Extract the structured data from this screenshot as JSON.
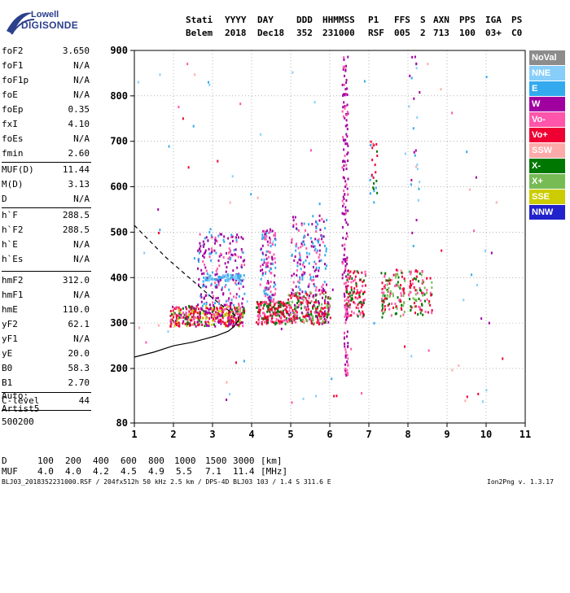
{
  "logo": {
    "line1": "Lowell",
    "line2": "DIGISONDE"
  },
  "header": {
    "row1": [
      "Stati",
      "YYYY",
      "DAY",
      "DDD",
      "HHMMSS",
      "P1",
      "FFS",
      "S",
      "AXN",
      "PPS",
      "IGA",
      "PS"
    ],
    "row2": [
      "Belem",
      "2018",
      "Dec18",
      "352",
      "231000",
      "RSF",
      "005",
      "2",
      "713",
      "100",
      "03+",
      "C0"
    ]
  },
  "parameters": [
    {
      "label": "foF2",
      "value": "3.650"
    },
    {
      "label": "foF1",
      "value": "N/A"
    },
    {
      "label": "foF1p",
      "value": "N/A"
    },
    {
      "label": "foE",
      "value": "N/A"
    },
    {
      "label": "foEp",
      "value": "0.35"
    },
    {
      "label": "fxI",
      "value": "4.10"
    },
    {
      "label": "foEs",
      "value": "N/A"
    },
    {
      "label": "fmin",
      "value": "2.60"
    },
    {
      "label": "MUF(D)",
      "value": "11.44"
    },
    {
      "label": "M(D)",
      "value": "3.13"
    },
    {
      "label": "D",
      "value": "N/A"
    },
    {
      "label": "h`F",
      "value": "288.5"
    },
    {
      "label": "h`F2",
      "value": "288.5"
    },
    {
      "label": "h`E",
      "value": "N/A"
    },
    {
      "label": "h`Es",
      "value": "N/A"
    },
    {
      "label": "hmF2",
      "value": "312.0"
    },
    {
      "label": "hmF1",
      "value": "N/A"
    },
    {
      "label": "hmE",
      "value": "110.0"
    },
    {
      "label": "yF2",
      "value": "62.1"
    },
    {
      "label": "yF1",
      "value": "N/A"
    },
    {
      "label": "yE",
      "value": "20.0"
    },
    {
      "label": "B0",
      "value": "58.3"
    },
    {
      "label": "B1",
      "value": "2.70"
    },
    {
      "label": "C-level",
      "value": "44"
    }
  ],
  "auto": [
    "Auto:",
    "Artist5",
    "500200"
  ],
  "legend": [
    {
      "label": "NoVal",
      "color": "#8c8c8c"
    },
    {
      "label": "NNE",
      "color": "#87cefa"
    },
    {
      "label": "E",
      "color": "#33aaee"
    },
    {
      "label": "W",
      "color": "#a000a0"
    },
    {
      "label": "Vo-",
      "color": "#ff55aa"
    },
    {
      "label": "Vo+",
      "color": "#ee0033"
    },
    {
      "label": "SSW",
      "color": "#ffaaaa"
    },
    {
      "label": "X-",
      "color": "#007700"
    },
    {
      "label": "X+",
      "color": "#77bb55"
    },
    {
      "label": "SSE",
      "color": "#cccc00"
    },
    {
      "label": "NNW",
      "color": "#2222cc"
    }
  ],
  "muf_table": {
    "d_label": "D",
    "muf_label": "MUF",
    "d_values": [
      "100",
      "200",
      "400",
      "600",
      "800",
      "1000",
      "1500",
      "3000",
      "[km]"
    ],
    "muf_values": [
      "4.0",
      "4.0",
      "4.2",
      "4.5",
      "4.9",
      "5.5",
      "7.1",
      "11.4",
      "[MHz]"
    ]
  },
  "footer": {
    "left": "BLJ03_2018352231000.RSF / 204fx512h 50 kHz 2.5 km / DPS-4D BLJ03 103 / 1.4 S 311.6 E",
    "right": "Ion2Png v. 1.3.17"
  },
  "chart_data": {
    "type": "scatter",
    "xlabel": "",
    "ylabel": "",
    "xlim": [
      1,
      11
    ],
    "ylim": [
      80,
      900
    ],
    "x_ticks": [
      1,
      2,
      3,
      4,
      5,
      6,
      7,
      8,
      9,
      10,
      11
    ],
    "y_ticks": [
      80,
      200,
      300,
      400,
      500,
      600,
      700,
      800,
      900
    ],
    "grid": "dotted",
    "traces": [
      {
        "name": "",
        "style": "solid",
        "x": [
          1.0,
          1.5,
          2.0,
          2.5,
          2.8,
          3.1,
          3.4,
          3.55,
          3.65,
          3.68
        ],
        "y": [
          225,
          236,
          250,
          258,
          265,
          272,
          282,
          292,
          305,
          315
        ]
      },
      {
        "name": "",
        "style": "dashed",
        "x": [
          1.0,
          1.4,
          1.8,
          2.2,
          2.6,
          3.0,
          3.3,
          3.5,
          3.65
        ],
        "y": [
          515,
          480,
          445,
          415,
          385,
          355,
          335,
          322,
          312
        ]
      }
    ],
    "echo_clusters": [
      {
        "x": [
          1.9,
          3.8
        ],
        "y": [
          295,
          340
        ],
        "n": 380,
        "colors": [
          "#ee0033",
          "#ee0033",
          "#ff55aa",
          "#a000a0",
          "#007700",
          "#cccc00"
        ]
      },
      {
        "x": [
          2.6,
          3.8
        ],
        "y": [
          340,
          500
        ],
        "n": 220,
        "colors": [
          "#a000a0",
          "#a000a0",
          "#ff55aa",
          "#33aaee"
        ]
      },
      {
        "x": [
          2.8,
          3.8
        ],
        "y": [
          395,
          410
        ],
        "n": 70,
        "colors": [
          "#33aaee",
          "#87cefa"
        ]
      },
      {
        "x": [
          4.1,
          4.9
        ],
        "y": [
          300,
          350
        ],
        "n": 200,
        "colors": [
          "#ee0033",
          "#ee0033",
          "#ff55aa",
          "#007700"
        ]
      },
      {
        "x": [
          4.2,
          4.6
        ],
        "y": [
          350,
          510
        ],
        "n": 120,
        "colors": [
          "#a000a0",
          "#ff55aa",
          "#33aaee"
        ]
      },
      {
        "x": [
          4.9,
          6.0
        ],
        "y": [
          300,
          370
        ],
        "n": 260,
        "colors": [
          "#ee0033",
          "#ee0033",
          "#ff55aa",
          "#a000a0",
          "#007700",
          "#77bb55"
        ]
      },
      {
        "x": [
          5.0,
          5.9
        ],
        "y": [
          370,
          540
        ],
        "n": 160,
        "colors": [
          "#a000a0",
          "#ff55aa",
          "#33aaee"
        ]
      },
      {
        "x": [
          6.3,
          6.45
        ],
        "y": [
          400,
          895
        ],
        "n": 120,
        "colors": [
          "#a000a0",
          "#a000a0",
          "#ff55aa"
        ]
      },
      {
        "x": [
          6.35,
          6.45
        ],
        "y": [
          180,
          400
        ],
        "n": 60,
        "colors": [
          "#a000a0",
          "#ff55aa"
        ]
      },
      {
        "x": [
          6.4,
          6.9
        ],
        "y": [
          315,
          420
        ],
        "n": 110,
        "colors": [
          "#ee0033",
          "#ee0033",
          "#ff55aa",
          "#007700"
        ]
      },
      {
        "x": [
          7.3,
          7.9
        ],
        "y": [
          315,
          420
        ],
        "n": 110,
        "colors": [
          "#ee0033",
          "#ff55aa",
          "#007700",
          "#77bb55"
        ]
      },
      {
        "x": [
          8.0,
          8.6
        ],
        "y": [
          320,
          420
        ],
        "n": 90,
        "colors": [
          "#ee0033",
          "#ff55aa",
          "#77bb55",
          "#007700"
        ]
      },
      {
        "x": [
          7.0,
          7.2
        ],
        "y": [
          560,
          705
        ],
        "n": 25,
        "colors": [
          "#33aaee",
          "#007700",
          "#ee0033"
        ]
      },
      {
        "x": [
          8.0,
          8.3
        ],
        "y": [
          420,
          900
        ],
        "n": 25,
        "colors": [
          "#33aaee",
          "#87cefa",
          "#a000a0"
        ]
      },
      {
        "x": [
          1.0,
          10.5
        ],
        "y": [
          120,
          880
        ],
        "n": 90,
        "colors": [
          "#ffaaaa",
          "#87cefa",
          "#a000a0",
          "#ff55aa",
          "#33aaee",
          "#ee0033"
        ]
      }
    ]
  }
}
